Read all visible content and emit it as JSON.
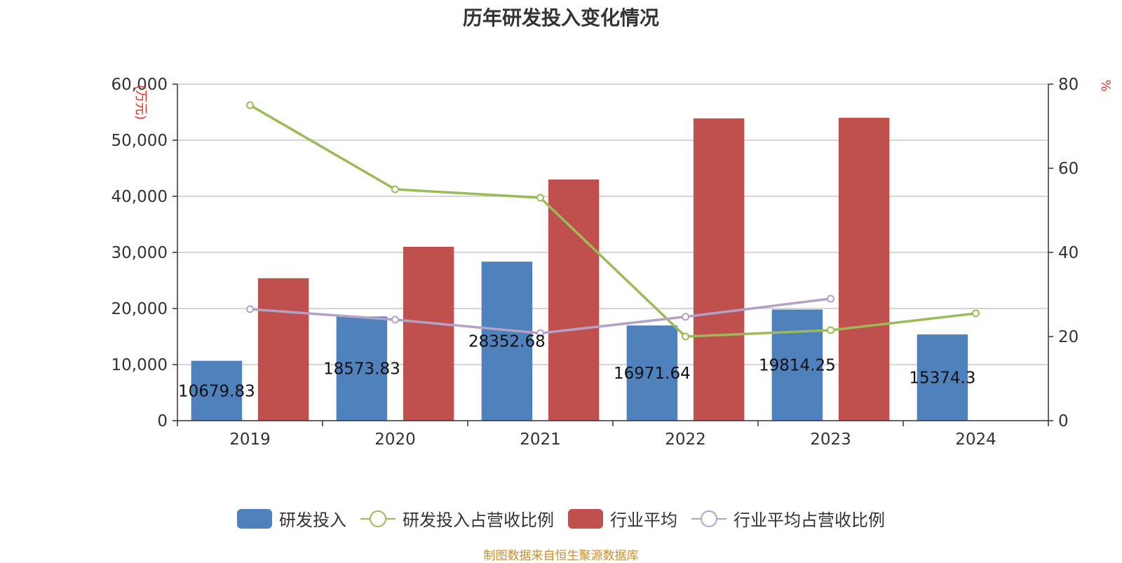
{
  "title": "历年研发投入变化情况",
  "source": "制图数据来自恒生聚源数据库",
  "colors": {
    "rd": "#4f81bd",
    "rd_ratio": "#9bbb59",
    "industry": "#c0504d",
    "industry_ratio": "#b3a2c7",
    "axis_unit": "#e8312b",
    "grid": "#c8c8c8",
    "axis_text": "#333333"
  },
  "chart_data": {
    "type": "bar",
    "categories": [
      "2019",
      "2020",
      "2021",
      "2022",
      "2023",
      "2024"
    ],
    "y_left": {
      "unit": "万元",
      "ylim": [
        0,
        60000
      ],
      "ticks": [
        0,
        10000,
        20000,
        30000,
        40000,
        50000,
        60000
      ],
      "tick_labels": [
        "0",
        "10,000",
        "20,000",
        "30,000",
        "40,000",
        "50,000",
        "60,000"
      ]
    },
    "y_right": {
      "unit": "%",
      "ylim": [
        0,
        80
      ],
      "ticks": [
        0,
        20,
        40,
        60,
        80
      ],
      "tick_labels": [
        "0",
        "20",
        "40",
        "60",
        "80"
      ]
    },
    "series": [
      {
        "name": "研发投入",
        "type": "bar",
        "axis": "left",
        "values": [
          10679.83,
          18573.83,
          28352.68,
          16971.64,
          19814.25,
          15374.3
        ],
        "labels": [
          "10679.83",
          "18573.83",
          "28352.68",
          "16971.64",
          "19814.25",
          "15374.3"
        ]
      },
      {
        "name": "研发投入占营收比例",
        "type": "line",
        "axis": "right",
        "values": [
          75.0,
          55.0,
          53.0,
          20.0,
          21.5,
          25.5
        ]
      },
      {
        "name": "行业平均",
        "type": "bar",
        "axis": "left",
        "values": [
          25400,
          31000,
          43000,
          53900,
          54000,
          null
        ]
      },
      {
        "name": "行业平均占营收比例",
        "type": "line",
        "axis": "right",
        "values": [
          26.5,
          24.0,
          20.8,
          24.7,
          29.0,
          null
        ]
      }
    ],
    "grid": true,
    "legend_position": "bottom"
  }
}
